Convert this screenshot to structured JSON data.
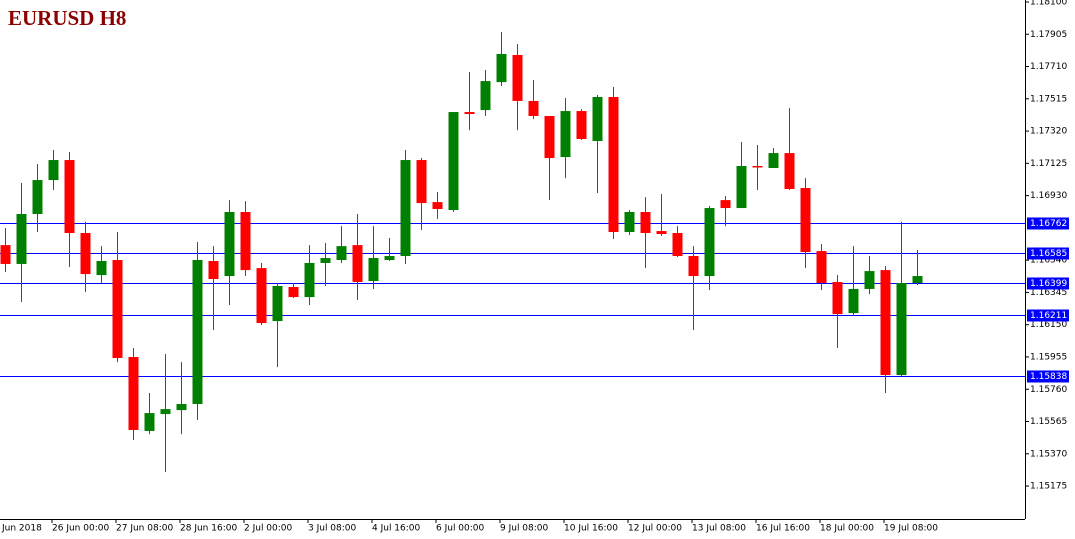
{
  "chart_data": {
    "type": "candlestick",
    "title": "EURUSD H8",
    "first_x_label": "Jun 2018",
    "categories": [
      null,
      null,
      null,
      "26 Jun 00:00",
      null,
      null,
      null,
      "27 Jun 08:00",
      null,
      null,
      null,
      "28 Jun 16:00",
      null,
      null,
      null,
      "2 Jul 00:00",
      null,
      null,
      null,
      "3 Jul 08:00",
      null,
      null,
      null,
      "4 Jul 16:00",
      null,
      null,
      null,
      "6 Jul 00:00",
      null,
      null,
      null,
      "9 Jul 08:00",
      null,
      null,
      null,
      "10 Jul 16:00",
      null,
      null,
      null,
      "12 Jul 00:00",
      null,
      null,
      null,
      "13 Jul 08:00",
      null,
      null,
      null,
      "16 Jul 16:00",
      null,
      null,
      null,
      "18 Jul 00:00",
      null,
      null,
      null,
      "19 Jul 08:00",
      null,
      null
    ],
    "open": [
      1.16631,
      1.16517,
      1.16819,
      1.17024,
      1.17145,
      1.16704,
      1.1645,
      1.16541,
      1.15955,
      1.15508,
      1.1561,
      1.15634,
      1.15671,
      1.16535,
      1.16444,
      1.16831,
      1.16492,
      1.16172,
      1.16378,
      1.16317,
      1.16523,
      1.16541,
      1.16631,
      1.16414,
      1.16541,
      1.16565,
      1.17145,
      1.16891,
      1.16843,
      1.17435,
      1.17447,
      1.17616,
      1.1778,
      1.17502,
      1.17411,
      1.17163,
      1.17441,
      1.1726,
      1.17526,
      1.1671,
      1.16831,
      1.16716,
      1.16704,
      1.16565,
      1.16444,
      1.16903,
      1.16855,
      1.17109,
      1.17097,
      1.17187,
      1.16976,
      1.16595,
      1.16408,
      1.1622,
      1.16366,
      1.1648,
      1.15846,
      1.16402
    ],
    "high": [
      1.16734,
      1.17006,
      1.17121,
      1.17206,
      1.17194,
      1.16771,
      1.16625,
      1.1671,
      1.16009,
      1.15737,
      1.15973,
      1.15924,
      1.1665,
      1.16625,
      1.16903,
      1.16897,
      1.16523,
      1.16402,
      1.16402,
      1.16631,
      1.16644,
      1.16746,
      1.16819,
      1.16746,
      1.16674,
      1.17206,
      1.17157,
      1.16952,
      1.17435,
      1.17677,
      1.17689,
      1.17919,
      1.17846,
      1.17629,
      1.17411,
      1.1752,
      1.17453,
      1.17538,
      1.17586,
      1.16843,
      1.16921,
      1.1694,
      1.16746,
      1.16625,
      1.16867,
      1.16928,
      1.17254,
      1.17236,
      1.17218,
      1.17459,
      1.17036,
      1.16638,
      1.1645,
      1.16625,
      1.16565,
      1.16505,
      1.16771,
      1.16601
    ],
    "low": [
      1.16468,
      1.16287,
      1.1671,
      1.16964,
      1.16499,
      1.16347,
      1.16402,
      1.15924,
      1.15453,
      1.15489,
      1.1526,
      1.15489,
      1.15574,
      1.16118,
      1.16269,
      1.16444,
      1.16148,
      1.15894,
      1.16311,
      1.16269,
      1.16384,
      1.16523,
      1.16299,
      1.16366,
      1.16535,
      1.16517,
      1.16722,
      1.16789,
      1.16831,
      1.17326,
      1.17411,
      1.17592,
      1.17326,
      1.17393,
      1.16903,
      1.17036,
      1.17266,
      1.16946,
      1.16668,
      1.16692,
      1.16492,
      1.16686,
      1.16559,
      1.16118,
      1.1636,
      1.16746,
      1.16855,
      1.16964,
      1.17097,
      1.16964,
      1.16492,
      1.1636,
      1.16009,
      1.16202,
      1.16335,
      1.15737,
      1.1584,
      1.1639
    ],
    "close": [
      1.16517,
      1.16819,
      1.17024,
      1.17145,
      1.16704,
      1.16456,
      1.16535,
      1.15949,
      1.15514,
      1.15616,
      1.1564,
      1.15671,
      1.16541,
      1.16426,
      1.16831,
      1.1648,
      1.1616,
      1.16384,
      1.16317,
      1.16523,
      1.16553,
      1.16625,
      1.16408,
      1.16553,
      1.16565,
      1.17145,
      1.16885,
      1.16849,
      1.17435,
      1.17423,
      1.17622,
      1.17786,
      1.17502,
      1.17411,
      1.17157,
      1.17441,
      1.17272,
      1.17526,
      1.1671,
      1.16831,
      1.16704,
      1.16698,
      1.16565,
      1.16444,
      1.16855,
      1.16855,
      1.17109,
      1.17103,
      1.17187,
      1.1697,
      1.16589,
      1.16402,
      1.16214,
      1.16366,
      1.16474,
      1.15846,
      1.16402,
      1.16444
    ],
    "up_color": "#008000",
    "down_color": "#ff0000",
    "levels": [
      1.16762,
      1.16585,
      1.16399,
      1.16211,
      1.15838
    ],
    "level_color": "#0000ff",
    "ylim": [
      1.14976,
      1.18112
    ],
    "yticks": [
      {
        "value": 1.181,
        "label": "1.18100"
      },
      1.17905,
      {
        "value": 1.1771,
        "label": "1.17710"
      },
      1.17515,
      {
        "value": 1.1732,
        "label": "1.17320"
      },
      1.17125,
      {
        "value": 1.1693,
        "label": "1.16930"
      },
      {
        "value": 1.1654,
        "label": "1.16540"
      },
      1.16345,
      {
        "value": 1.1615,
        "label": "1.16150"
      },
      1.15955,
      {
        "value": 1.1576,
        "label": "1.15760"
      },
      1.15565,
      {
        "value": 1.1537,
        "label": "1.15370"
      },
      1.15175
    ]
  }
}
